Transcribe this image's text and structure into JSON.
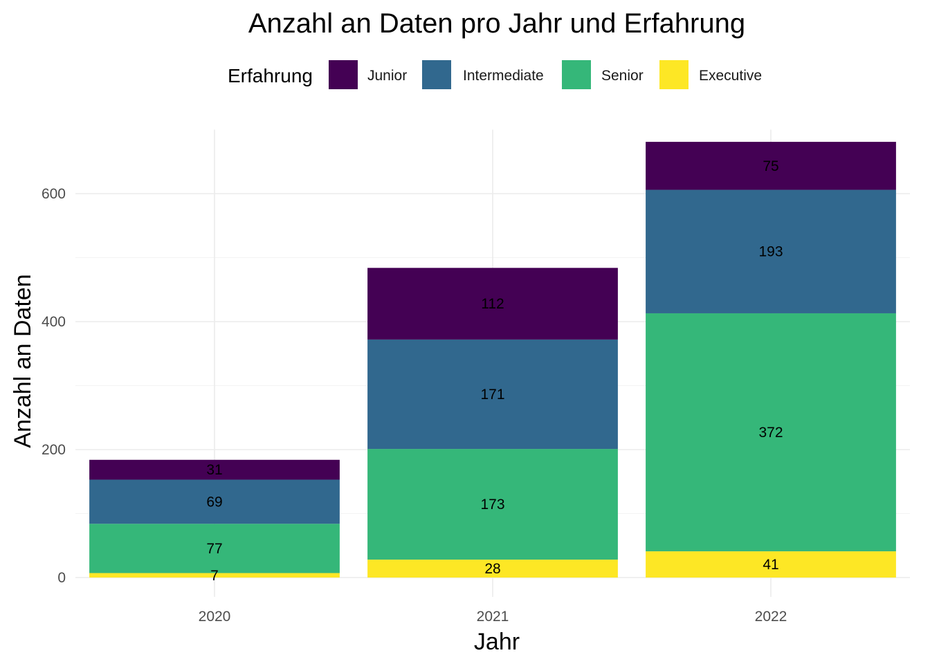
{
  "chart_data": {
    "type": "bar",
    "stacked": true,
    "title": "Anzahl an Daten pro Jahr und Erfahrung",
    "xlabel": "Jahr",
    "ylabel": "Anzahl an Daten",
    "categories": [
      "2020",
      "2021",
      "2022"
    ],
    "series": [
      {
        "name": "Executive",
        "color": "#FDE725",
        "values": [
          7,
          28,
          41
        ]
      },
      {
        "name": "Senior",
        "color": "#35B779",
        "values": [
          77,
          173,
          372
        ]
      },
      {
        "name": "Intermediate",
        "color": "#31688E",
        "values": [
          69,
          171,
          193
        ]
      },
      {
        "name": "Junior",
        "color": "#440154",
        "values": [
          31,
          112,
          75
        ]
      }
    ],
    "legend_order": [
      "Junior",
      "Intermediate",
      "Senior",
      "Executive"
    ],
    "legend_title": "Erfahrung",
    "legend_position": "top",
    "ylim": [
      0,
      700
    ],
    "yticks": [
      0,
      200,
      400,
      600
    ],
    "grid": true
  }
}
